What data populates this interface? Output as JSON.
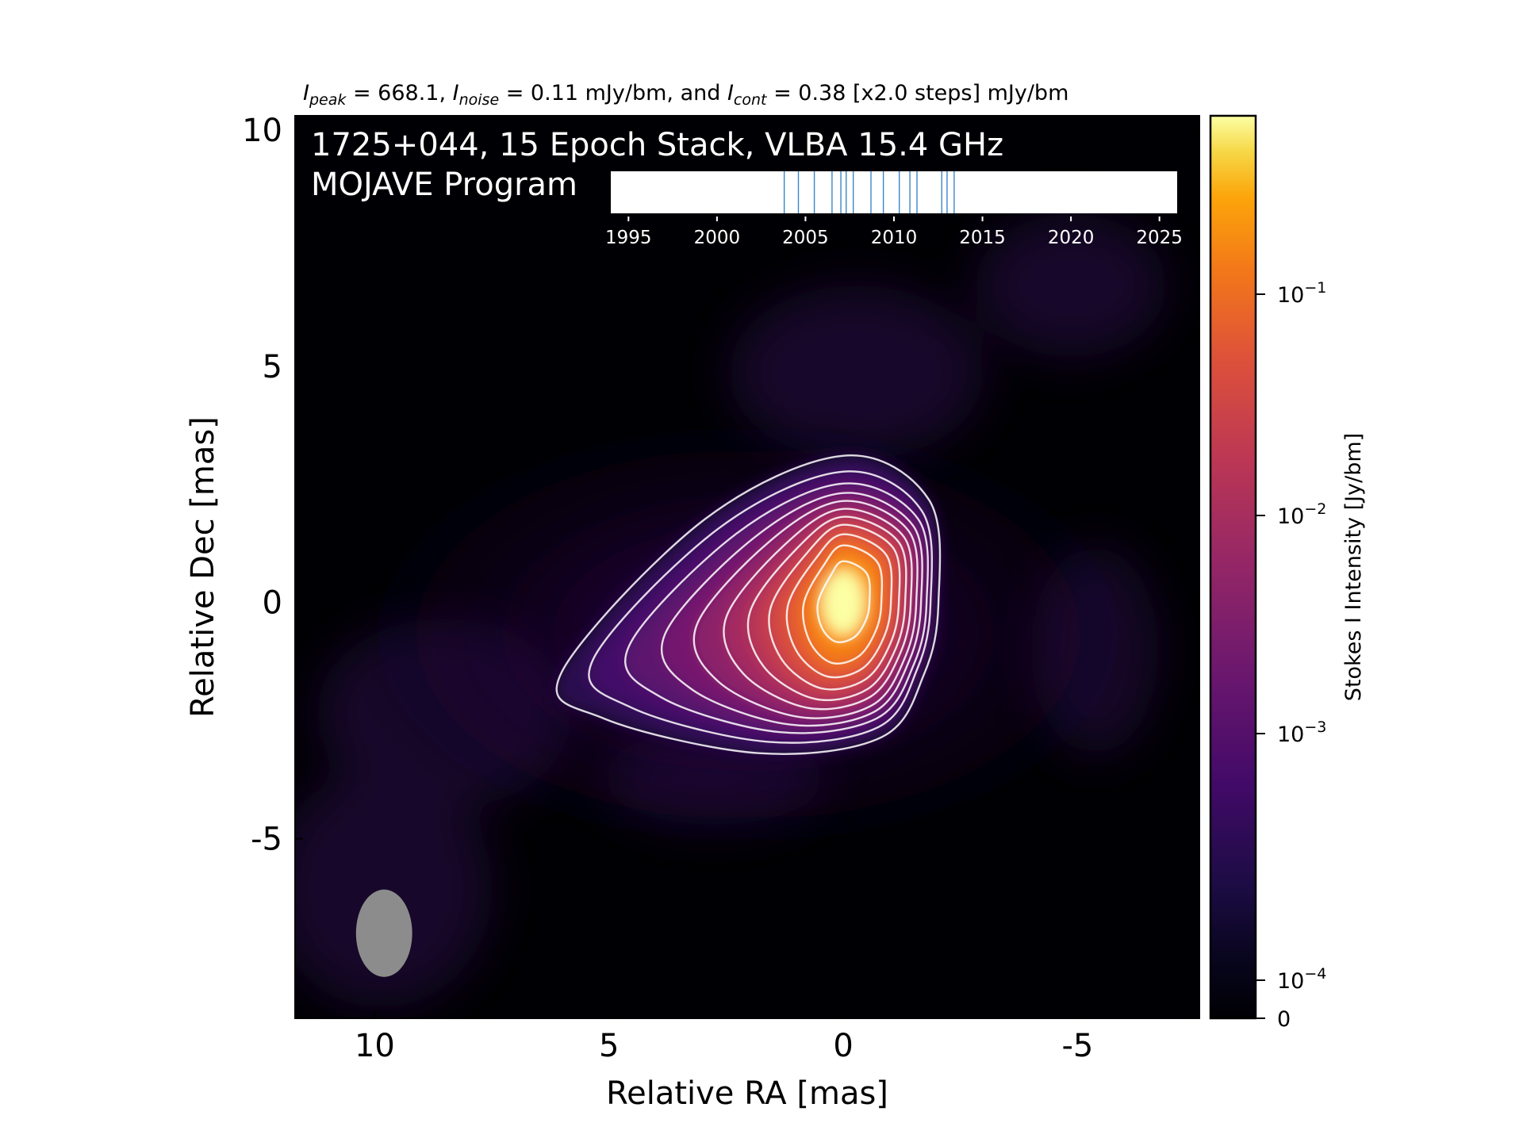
{
  "chart_data": {
    "type": "heatmap",
    "header": {
      "peak_label": "I",
      "peak_sub": "peak",
      "peak_value": " = 668.1, ",
      "noise_label": "I",
      "noise_sub": "noise",
      "noise_value": " = 0.11 mJy/bm, and ",
      "cont_label": "I",
      "cont_sub": "cont",
      "cont_value": " = 0.38 [x2.0 steps] mJy/bm"
    },
    "overlay_title_line1": "1725+044, 15 Epoch Stack, VLBA 15.4 GHz",
    "overlay_title_line2": "MOJAVE Program",
    "xlabel": "Relative RA [mas]",
    "ylabel": "Relative Dec [mas]",
    "xlim": [
      11.7,
      -7.6
    ],
    "ylim": [
      -8.8,
      10.3
    ],
    "x_ticks": [
      10,
      5,
      0,
      -5
    ],
    "x_tick_labels": [
      "10",
      "5",
      "0",
      "-5"
    ],
    "y_ticks": [
      10,
      5,
      0,
      -5
    ],
    "y_tick_labels": [
      "10",
      "5",
      "0",
      "-5"
    ],
    "peak_intensity_mJy_per_beam": 668.1,
    "noise_mJy_per_beam": 0.11,
    "lowest_contour_mJy_per_beam": 0.38,
    "contour_step_factor": 2.0,
    "contour_levels_mJy_per_beam": [
      0.38,
      0.76,
      1.52,
      3.04,
      6.08,
      12.16,
      24.32,
      48.64,
      97.28,
      194.56,
      389.12
    ],
    "core_position_mas": [
      0,
      0
    ],
    "beam": {
      "center_mas": [
        9.8,
        -7.0
      ],
      "major_mas": 1.85,
      "minor_mas": 1.2,
      "pa_deg": 0
    },
    "colorbar": {
      "label": "Stokes I Intensity [Jy/bm]",
      "scale": "log",
      "colormap": "inferno",
      "tick_values": [
        0.1,
        0.01,
        0.001,
        0.0001,
        0
      ],
      "tick_base": [
        "10",
        "10",
        "10",
        "10",
        "0"
      ],
      "tick_exponents": [
        "−1",
        "−2",
        "−3",
        "−4",
        ""
      ]
    },
    "epoch_timeline": {
      "tick_years": [
        1995,
        2000,
        2005,
        2010,
        2015,
        2020,
        2025
      ],
      "tick_labels": [
        "1995",
        "2000",
        "2005",
        "2010",
        "2015",
        "2020",
        "2025"
      ],
      "range": [
        1994,
        2026
      ],
      "epochs": [
        2003.8,
        2004.6,
        2005.5,
        2006.5,
        2007.0,
        2007.3,
        2007.7,
        2008.7,
        2009.4,
        2010.3,
        2010.9,
        2011.3,
        2012.7,
        2013.0,
        2013.4
      ]
    },
    "colors": {
      "background": "#000004",
      "contour": "#ffffff",
      "beam": "#8c8c8c",
      "epoch_marker": "#3b86c8"
    }
  }
}
